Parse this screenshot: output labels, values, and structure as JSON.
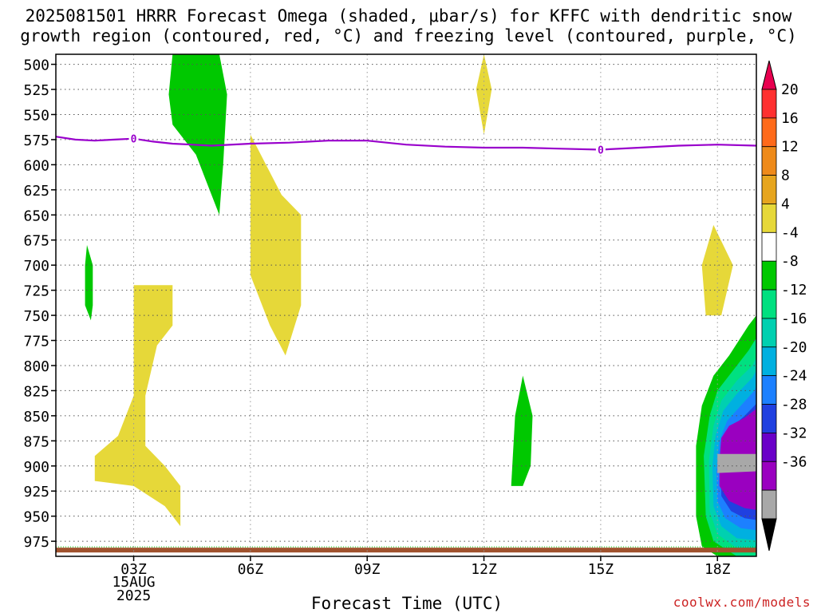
{
  "title_line1": "2025081501 HRRR Forecast Omega (shaded, μbar/s) for KFFC with dendritic snow",
  "title_line2": "growth region (contoured, red, °C) and freezing level (contoured, purple, °C)",
  "credit": "coolwx.com/models",
  "chart_data": {
    "type": "heatmap",
    "title": "2025081501 HRRR Forecast Omega (shaded, μbar/s) for KFFC with dendritic snow growth region (contoured, red, °C) and freezing level (contoured, purple, °C)",
    "xlabel": "Forecast Time (UTC)",
    "ylabel": "",
    "x_range_hours": [
      1,
      19
    ],
    "y_range_hPa": [
      490,
      990
    ],
    "y_ticks": [
      500,
      525,
      550,
      575,
      600,
      625,
      650,
      675,
      700,
      725,
      750,
      775,
      800,
      825,
      850,
      875,
      900,
      925,
      950,
      975
    ],
    "x_ticks": [
      {
        "hour": 3,
        "label": "03Z",
        "date": "15AUG",
        "year": "2025"
      },
      {
        "hour": 6,
        "label": "06Z"
      },
      {
        "hour": 9,
        "label": "09Z"
      },
      {
        "hour": 12,
        "label": "12Z"
      },
      {
        "hour": 15,
        "label": "15Z"
      },
      {
        "hour": 18,
        "label": "18Z"
      }
    ],
    "grid": true,
    "colorbar": {
      "labels": [
        "20",
        "16",
        "12",
        "8",
        "4",
        "-4",
        "-8",
        "-12",
        "-16",
        "-20",
        "-24",
        "-28",
        "-32",
        "-36"
      ],
      "colors": [
        "#e8004f",
        "#ff3030",
        "#ff6a1a",
        "#ee8a1a",
        "#e6a51e",
        "#e6d839",
        "#ffffff",
        "#00c800",
        "#00e080",
        "#00d0b0",
        "#00b0e0",
        "#1c80ff",
        "#2040e0",
        "#6a00c8",
        "#9a00c0",
        "#a8a8a8",
        "#000000"
      ]
    },
    "freezing_level": {
      "label": "0",
      "color": "#9900cc",
      "points": [
        [
          1.0,
          572
        ],
        [
          1.5,
          575
        ],
        [
          2.0,
          576
        ],
        [
          2.5,
          575
        ],
        [
          3.0,
          574
        ],
        [
          3.5,
          577
        ],
        [
          4.0,
          579
        ],
        [
          4.5,
          580
        ],
        [
          5.0,
          581
        ],
        [
          6.0,
          579
        ],
        [
          7.0,
          578
        ],
        [
          8.0,
          576
        ],
        [
          9.0,
          576
        ],
        [
          10.0,
          580
        ],
        [
          11.0,
          582
        ],
        [
          12.0,
          583
        ],
        [
          13.0,
          583
        ],
        [
          14.0,
          584
        ],
        [
          15.0,
          585
        ],
        [
          16.0,
          583
        ],
        [
          17.0,
          581
        ],
        [
          18.0,
          580
        ],
        [
          19.0,
          581
        ]
      ]
    },
    "omega_regions": [
      {
        "sign": "negative",
        "level": "-4 to -8",
        "color": "#00c800",
        "points": [
          [
            4.0,
            490
          ],
          [
            5.2,
            490
          ],
          [
            5.4,
            530
          ],
          [
            5.3,
            600
          ],
          [
            5.2,
            650
          ],
          [
            4.6,
            590
          ],
          [
            4.0,
            560
          ],
          [
            3.9,
            530
          ]
        ]
      },
      {
        "sign": "negative",
        "level": "-4 to -8",
        "color": "#00c800",
        "points": [
          [
            1.8,
            680
          ],
          [
            1.95,
            700
          ],
          [
            1.95,
            740
          ],
          [
            1.9,
            755
          ],
          [
            1.75,
            740
          ],
          [
            1.75,
            700
          ]
        ]
      },
      {
        "sign": "negative",
        "level": "-4 to -8",
        "color": "#00c800",
        "points": [
          [
            13.0,
            810
          ],
          [
            13.25,
            850
          ],
          [
            13.2,
            900
          ],
          [
            13.0,
            920
          ],
          [
            12.7,
            920
          ],
          [
            12.8,
            850
          ]
        ]
      },
      {
        "sign": "positive",
        "level": "4 to 8",
        "color": "#e6d839",
        "points": [
          [
            12.0,
            490
          ],
          [
            12.2,
            525
          ],
          [
            12.0,
            570
          ],
          [
            11.8,
            525
          ]
        ]
      },
      {
        "sign": "positive",
        "level": "4 to 8",
        "color": "#e6d839",
        "points": [
          [
            6.0,
            570
          ],
          [
            6.8,
            630
          ],
          [
            7.3,
            650
          ],
          [
            7.3,
            740
          ],
          [
            6.9,
            790
          ],
          [
            6.5,
            760
          ],
          [
            6.0,
            710
          ]
        ]
      },
      {
        "sign": "positive",
        "level": "4 to 8",
        "color": "#e6d839",
        "points": [
          [
            3.0,
            720
          ],
          [
            4.0,
            720
          ],
          [
            4.0,
            760
          ],
          [
            3.6,
            780
          ],
          [
            3.3,
            830
          ],
          [
            3.3,
            880
          ],
          [
            3.8,
            900
          ],
          [
            4.2,
            920
          ],
          [
            4.2,
            960
          ],
          [
            3.8,
            940
          ],
          [
            3.0,
            920
          ],
          [
            2.0,
            915
          ],
          [
            2.0,
            890
          ],
          [
            2.6,
            870
          ],
          [
            3.0,
            830
          ],
          [
            3.0,
            760
          ]
        ]
      },
      {
        "sign": "positive",
        "level": "4 to 8",
        "color": "#e6d839",
        "points": [
          [
            17.9,
            660
          ],
          [
            18.4,
            700
          ],
          [
            18.1,
            750
          ],
          [
            17.7,
            750
          ],
          [
            17.6,
            700
          ]
        ]
      }
    ],
    "strong_ascent_region": {
      "location": "lower right, 17.5Z-19Z, 745-990 hPa",
      "min_level": "-32 to -36",
      "layers": [
        {
          "level": "-4 to -8",
          "color": "#00c800"
        },
        {
          "level": "-8 to -12",
          "color": "#00e080"
        },
        {
          "level": "-12 to -16",
          "color": "#00d0b0"
        },
        {
          "level": "-16 to -20",
          "color": "#00b0e0"
        },
        {
          "level": "-20 to -24",
          "color": "#1c80ff"
        },
        {
          "level": "-24 to -28",
          "color": "#2040e0"
        },
        {
          "level": "-28 to -32",
          "color": "#9a00c0"
        },
        {
          "level": "-32 to -36",
          "color": "#a8a8a8"
        }
      ]
    },
    "surface_band_color": "#a0522d"
  }
}
